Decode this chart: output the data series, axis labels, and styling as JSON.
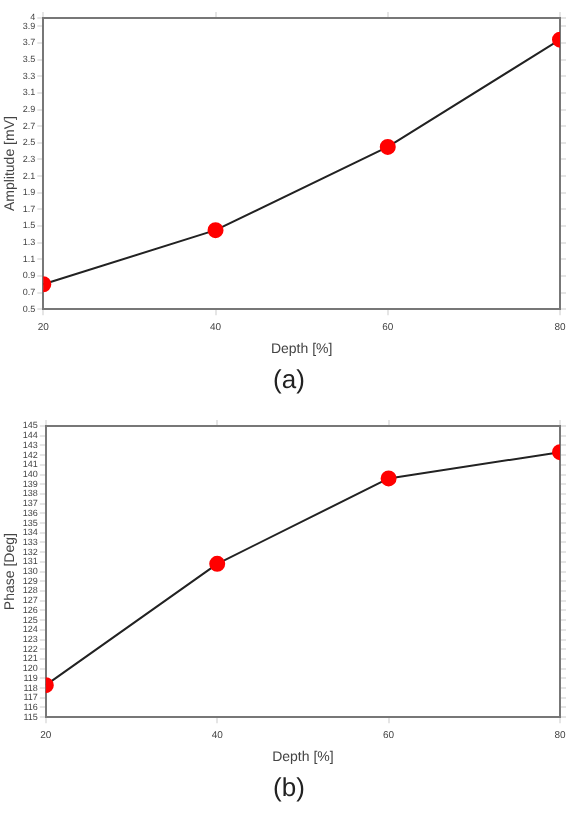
{
  "chart_data": [
    {
      "type": "line",
      "xlabel": "Depth [%]",
      "ylabel": "Amplitude [mV]",
      "x": [
        20,
        40,
        60,
        80
      ],
      "series": [
        {
          "color": "#ff0000",
          "values": [
            0.8,
            1.45,
            2.45,
            3.74
          ]
        }
      ],
      "xlim": [
        20,
        80
      ],
      "xticks": [
        20,
        40,
        60,
        80
      ],
      "ylim": [
        0.5,
        4
      ],
      "yticks": [
        0.5,
        0.7,
        0.9,
        1.1,
        1.3,
        1.5,
        1.7,
        1.9,
        2.1,
        2.3,
        2.5,
        2.7,
        2.9,
        3.1,
        3.3,
        3.5,
        3.7,
        3.9,
        4
      ],
      "marker": "circle",
      "line_style": "solid",
      "grid": false,
      "legend": false,
      "annotations": [
        "(a)"
      ]
    },
    {
      "type": "line",
      "xlabel": "Depth [%]",
      "ylabel": "Phase [Deg]",
      "x": [
        20,
        40,
        60,
        80
      ],
      "series": [
        {
          "color": "#ff0000",
          "values": [
            118.3,
            130.8,
            139.6,
            142.3
          ]
        }
      ],
      "xlim": [
        20,
        80
      ],
      "xticks": [
        20,
        40,
        60,
        80
      ],
      "ylim": [
        115,
        145
      ],
      "yticks": [
        115,
        116,
        117,
        118,
        119,
        120,
        121,
        122,
        123,
        124,
        125,
        126,
        127,
        128,
        129,
        130,
        131,
        132,
        133,
        134,
        135,
        136,
        137,
        138,
        139,
        140,
        141,
        142,
        143,
        144,
        145
      ],
      "marker": "circle",
      "line_style": "solid",
      "grid": false,
      "legend": false,
      "annotations": [
        "(b)"
      ]
    }
  ]
}
